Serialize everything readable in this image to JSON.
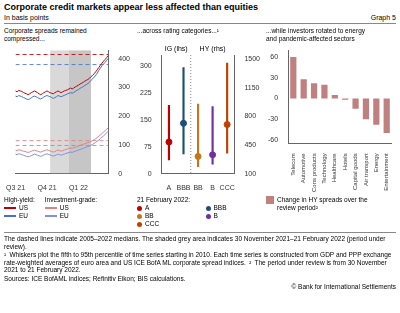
{
  "title": "Corporate credit markets appear less affected than equities",
  "subtitle": "In basis points",
  "graph_label": "Graph 5",
  "notes": [
    "The dashed lines indicate 2005–2022 medians. The shaded grey area indicates 30 November 2021–21 February 2022 (period under review).",
    "¹ Whiskers plot the fifth to 95th percentile of time series starting in 2010. Each time series is constructed from GDP and PPP exchange rate-weighted averages of euro area and US ICE BofA ML corporate spread indices. ² The period under review is from 30 November 2021 to 21 February 2022.",
    "Sources: ICE BofAML indices; Refinitiv Eikon; BIS calculations."
  ],
  "source": "© Bank for International Settlements",
  "chart_data": [
    {
      "type": "line",
      "title": "Corporate spreads remained\ncompressed...",
      "categories": [
        "Q3 21",
        null,
        null,
        null,
        null,
        null,
        null,
        null,
        null,
        null,
        null,
        null,
        null,
        null,
        null,
        null,
        null,
        null,
        null,
        null,
        "Q4 21",
        null,
        null,
        null,
        null,
        null,
        null,
        null,
        null,
        null,
        null,
        null,
        null,
        null,
        null,
        null,
        null,
        null,
        null,
        null,
        "Q1 22",
        null,
        null,
        null,
        null,
        null,
        null,
        null,
        null,
        null,
        null,
        null,
        null,
        null,
        null,
        null,
        null,
        null,
        null,
        null
      ],
      "series": [
        {
          "name": "US",
          "legend_group": "High-yield:",
          "color": "#c00000",
          "values": [
            288,
            285,
            290,
            288,
            286,
            283,
            280,
            278,
            275,
            278,
            282,
            285,
            288,
            285,
            282,
            278,
            275,
            278,
            282,
            285,
            288,
            285,
            282,
            280,
            278,
            282,
            285,
            288,
            285,
            282,
            285,
            288,
            290,
            292,
            295,
            298,
            295,
            298,
            302,
            305,
            308,
            312,
            315,
            318,
            322,
            325,
            328,
            332,
            338,
            342,
            348,
            355,
            362,
            370,
            378,
            385,
            392,
            398,
            405,
            412
          ]
        },
        {
          "name": "EU",
          "legend_group": "High-yield:",
          "color": "#4472c4",
          "values": [
            270,
            268,
            272,
            270,
            268,
            265,
            263,
            260,
            258,
            260,
            264,
            268,
            270,
            268,
            265,
            262,
            260,
            263,
            267,
            270,
            272,
            270,
            268,
            265,
            262,
            265,
            268,
            272,
            270,
            268,
            270,
            273,
            275,
            278,
            280,
            282,
            280,
            283,
            287,
            290,
            293,
            297,
            300,
            303,
            307,
            310,
            314,
            318,
            325,
            330,
            336,
            343,
            350,
            360,
            368,
            376,
            382,
            388,
            395,
            402
          ]
        },
        {
          "name": "US",
          "legend_group": "Investment-grade:",
          "color": "#e08080",
          "values": [
            82,
            80,
            83,
            82,
            80,
            78,
            77,
            75,
            74,
            75,
            78,
            80,
            82,
            80,
            78,
            76,
            75,
            77,
            79,
            81,
            83,
            81,
            79,
            77,
            75,
            77,
            80,
            82,
            80,
            78,
            80,
            82,
            84,
            86,
            88,
            89,
            88,
            90,
            92,
            94,
            96,
            98,
            100,
            102,
            104,
            106,
            108,
            110,
            112,
            115,
            118,
            122,
            126,
            130,
            135,
            140,
            145,
            150,
            155,
            160
          ]
        },
        {
          "name": "EU",
          "legend_group": "Investment-grade:",
          "color": "#8090e0",
          "values": [
            68,
            66,
            69,
            68,
            66,
            64,
            62,
            60,
            59,
            60,
            63,
            65,
            68,
            66,
            64,
            62,
            60,
            62,
            65,
            67,
            69,
            67,
            65,
            63,
            61,
            63,
            65,
            68,
            66,
            64,
            66,
            68,
            70,
            72,
            74,
            75,
            74,
            76,
            78,
            80,
            82,
            84,
            86,
            88,
            90,
            92,
            94,
            96,
            99,
            102,
            105,
            109,
            113,
            117,
            122,
            127,
            132,
            137,
            142,
            148
          ]
        }
      ],
      "reference_lines": [
        {
          "value": 415,
          "color": "#c00000",
          "line_style": "dashed"
        },
        {
          "value": 380,
          "color": "#4472c4",
          "line_style": "dashed"
        },
        {
          "value": 115,
          "color": "#e08080",
          "line_style": "dashed"
        },
        {
          "value": 98,
          "color": "#8090e0",
          "line_style": "dashed"
        }
      ],
      "shaded": [
        {
          "from": 22,
          "to": 34,
          "color": "#c0c0c0"
        },
        {
          "from": 34,
          "to": 48,
          "color": "#a0a0a0"
        }
      ],
      "ylim": [
        0,
        430
      ],
      "yticks": [
        0,
        100,
        200,
        300,
        400
      ],
      "grid": false,
      "legend": "bottom"
    },
    {
      "type": "whisker",
      "title": "...across rating categories...¹",
      "categories": [
        "A",
        "BBB",
        "BB",
        "B",
        "CCC"
      ],
      "series": [
        {
          "name": "IG (lhs)",
          "axis": "y",
          "values": [
            88,
            140,
            null,
            null,
            null
          ],
          "whisker_low": [
            38,
            55,
            null,
            null,
            null
          ],
          "whisker_high": [
            190,
            295,
            null,
            null,
            null
          ]
        },
        {
          "name": "HY (rhs)",
          "axis": "y2",
          "values": [
            null,
            null,
            310,
            330,
            700
          ],
          "whisker_low": [
            null,
            null,
            185,
            215,
            350
          ],
          "whisker_high": [
            null,
            null,
            950,
            920,
            1450
          ]
        }
      ],
      "colors": [
        "#c00000",
        "#1f4e79",
        "#c07820",
        "#7030a0",
        "#c04000"
      ],
      "marker": "circle",
      "legend_title": "21 February 2022:",
      "ylim": [
        0,
        330
      ],
      "yticks": [
        0,
        75,
        150,
        225,
        300
      ],
      "y2lim": [
        100,
        1550
      ],
      "y2ticks": [
        100,
        450,
        800,
        1150,
        1500
      ],
      "grid": false,
      "legend": "bottom"
    },
    {
      "type": "bar",
      "title": "...while investors rotated to energy\nand pandemic-affected sectors",
      "categories": [
        "Telecom",
        "Automotive",
        "Cons products",
        "Technology",
        "Healthcare",
        "Hotels",
        "Capital goods",
        "Air transport",
        "Energy",
        "Entertainment"
      ],
      "series": [
        {
          "name": "Change in HY spreads over the\nreview period²",
          "color": "#c08080",
          "values": [
            60,
            28,
            22,
            20,
            5,
            -2,
            -15,
            -30,
            -38,
            -50
          ]
        }
      ],
      "ylim": [
        -65,
        70
      ],
      "yticks": [
        -60,
        -30,
        0,
        30,
        60
      ],
      "grid": false,
      "legend": "bottom"
    }
  ]
}
